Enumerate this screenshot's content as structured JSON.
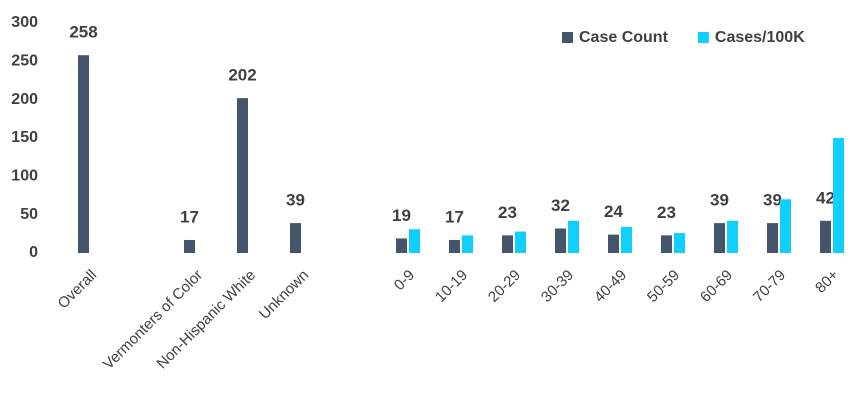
{
  "chart_data": {
    "type": "bar",
    "categories": [
      "Overall",
      null,
      "Vermonters of Color",
      "Non-Hispanic White",
      "Unknown",
      null,
      "0-9",
      "10-19",
      "20-29",
      "30-39",
      "40-49",
      "50-59",
      "60-69",
      "70-79",
      "80+"
    ],
    "series": [
      {
        "name": "Case Count",
        "color": "#44546a",
        "values": [
          258,
          null,
          17,
          202,
          39,
          null,
          19,
          17,
          23,
          32,
          24,
          23,
          39,
          39,
          42
        ],
        "data_labels": true
      },
      {
        "name": "Cases/100K",
        "color": "#0fcfff",
        "values": [
          null,
          null,
          null,
          null,
          null,
          null,
          31,
          23,
          28,
          42,
          34,
          26,
          42,
          70,
          150
        ]
      }
    ],
    "ylim": [
      0,
      300
    ],
    "yticks": [
      0,
      50,
      100,
      150,
      200,
      250,
      300
    ],
    "grid": false,
    "legend": "top-right"
  }
}
